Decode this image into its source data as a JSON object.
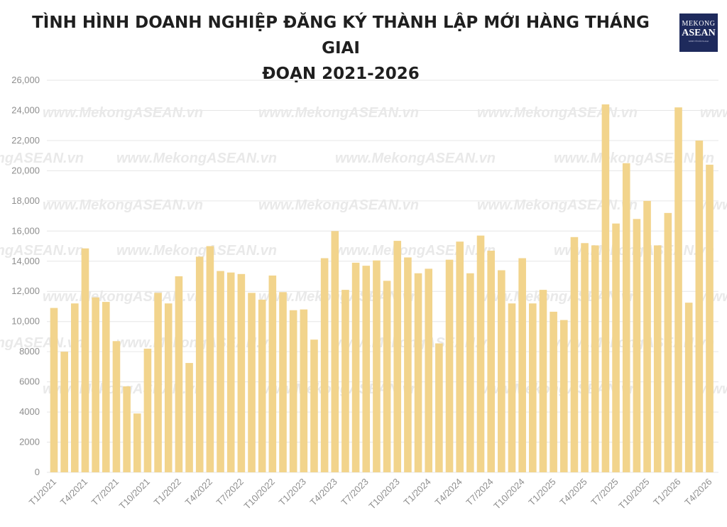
{
  "header": {
    "title_line1": "TÌNH HÌNH DOANH NGHIỆP ĐĂNG KÝ THÀNH LẬP MỚI HÀNG THÁNG GIAI",
    "title_line2": "ĐOẠN 2021-2026",
    "logo_line1": "MEKONG",
    "logo_line2": "ASEAN",
    "logo_line3": "KINH TẾ ĐỐI NGOẠI"
  },
  "watermark": "www.MekongASEAN.vn",
  "colors": {
    "bar": "#f2d48c",
    "grid": "#e6e6e6",
    "tick": "#8e8e8e",
    "logo_bg": "#1e2a5c"
  },
  "chart_data": {
    "type": "bar",
    "title": "TÌNH HÌNH DOANH NGHIỆP ĐĂNG KÝ THÀNH LẬP MỚI HÀNG THÁNG GIAI ĐOẠN 2021-2026",
    "xlabel": "",
    "ylabel": "",
    "ylim": [
      0,
      26000
    ],
    "yticks": [
      0,
      2000,
      4000,
      6000,
      8000,
      10000,
      12000,
      14000,
      16000,
      18000,
      20000,
      22000,
      24000,
      26000
    ],
    "ytick_labels": [
      "0",
      "2000",
      "4000",
      "6000",
      "8000",
      "10,000",
      "12,000",
      "14,000",
      "16,000",
      "18,000",
      "20,000",
      "22,000",
      "24,000",
      "26,000"
    ],
    "grid": true,
    "legend": "none",
    "categories": [
      "T1/2021",
      "T2/2021",
      "T3/2021",
      "T4/2021",
      "T5/2021",
      "T6/2021",
      "T7/2021",
      "T8/2021",
      "T9/2021",
      "T10/2021",
      "T11/2021",
      "T12/2021",
      "T1/2022",
      "T2/2022",
      "T3/2022",
      "T4/2022",
      "T5/2022",
      "T6/2022",
      "T7/2022",
      "T8/2022",
      "T9/2022",
      "T10/2022",
      "T11/2022",
      "T12/2022",
      "T1/2023",
      "T2/2023",
      "T3/2023",
      "T4/2023",
      "T5/2023",
      "T6/2023",
      "T7/2023",
      "T8/2023",
      "T9/2023",
      "T10/2023",
      "T11/2023",
      "T12/2023",
      "T1/2024",
      "T2/2024",
      "T3/2024",
      "T4/2024",
      "T5/2024",
      "T6/2024",
      "T7/2024",
      "T8/2024",
      "T9/2024",
      "T10/2024",
      "T11/2024",
      "T12/2024",
      "T1/2025",
      "T2/2025",
      "T3/2025",
      "T4/2025",
      "T5/2025",
      "T6/2025",
      "T7/2025",
      "T8/2025",
      "T9/2025",
      "T10/2025",
      "T11/2025",
      "T12/2025",
      "T1/2026",
      "T2/2026",
      "T3/2026",
      "T4/2026"
    ],
    "xtick_labels": [
      "T1/2021",
      "T4/2021",
      "T7/2021",
      "T10/2021",
      "T1/2022",
      "T4/2022",
      "T7/2022",
      "T10/2022",
      "T1/2023",
      "T4/2023",
      "T7/2023",
      "T10/2023",
      "T1/2024",
      "T4/2024",
      "T7/2024",
      "T10/2024",
      "T1/2025",
      "T4/2025",
      "T7/2025",
      "T10/2025",
      "T1/2026",
      "T4/2026"
    ],
    "values": [
      10900,
      8000,
      11200,
      14850,
      11600,
      11300,
      8700,
      5700,
      3900,
      8200,
      11900,
      11200,
      13000,
      7250,
      14300,
      15000,
      13350,
      13250,
      13150,
      11900,
      11450,
      13050,
      11950,
      10750,
      10800,
      8800,
      14200,
      16000,
      12100,
      13900,
      13700,
      14050,
      12700,
      15350,
      14250,
      13200,
      13500,
      8550,
      14100,
      15300,
      13200,
      15700,
      14700,
      13400,
      11200,
      14200,
      11200,
      12100,
      10650,
      10100,
      15600,
      15200,
      15050,
      24400,
      16500,
      20500,
      16800,
      18000,
      15050,
      17200,
      24200,
      11250,
      22000,
      20400
    ]
  }
}
